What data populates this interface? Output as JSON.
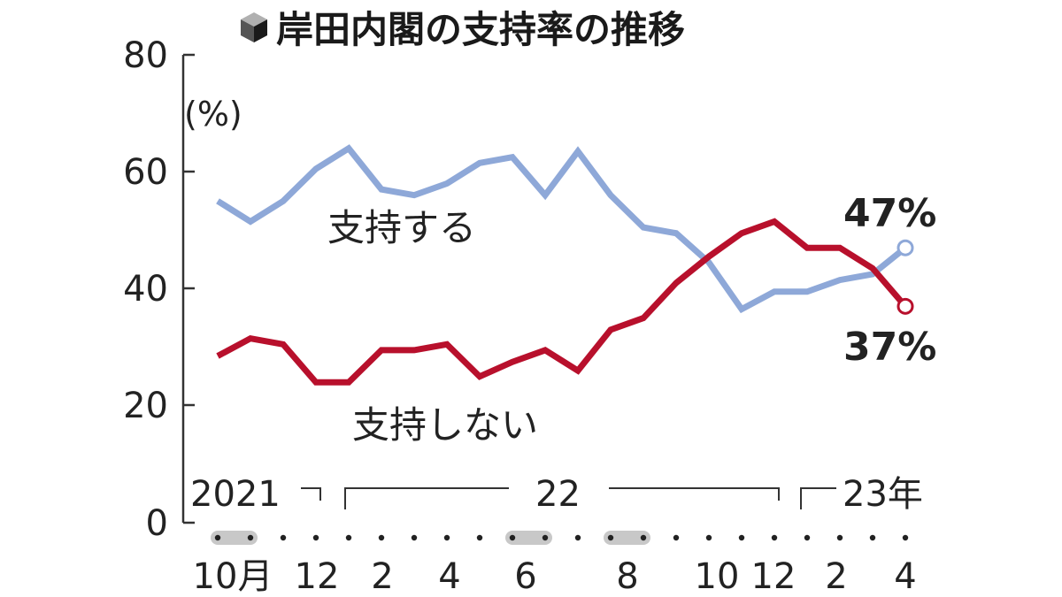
{
  "chart_data": {
    "type": "line",
    "title": "岸田内閣の支持率の推移",
    "unit_label": "(%)",
    "y_ticks": [
      "80",
      "60",
      "40",
      "20",
      "0"
    ],
    "ylim": [
      0,
      80
    ],
    "grid": false,
    "year_labels": [
      "2021",
      "22",
      "23年"
    ],
    "month_labels": [
      "10月",
      "12",
      "2",
      "4",
      "6",
      "8",
      "10",
      "12",
      "2",
      "4"
    ],
    "x": [
      "2021-10a",
      "2021-10b",
      "2021-11",
      "2021-12",
      "2022-01",
      "2022-02",
      "2022-03",
      "2022-04",
      "2022-05",
      "2022-06a",
      "2022-06b",
      "2022-07",
      "2022-08a",
      "2022-08b",
      "2022-09",
      "2022-10",
      "2022-11",
      "2022-12",
      "2023-01",
      "2023-02",
      "2023-03",
      "2023-04"
    ],
    "shaded_months": [
      "10月",
      "6",
      "8"
    ],
    "series": [
      {
        "name": "支持する",
        "color": "#8ea8d8",
        "values": [
          55,
          51.5,
          55,
          60.5,
          64,
          57,
          56,
          58,
          61.5,
          62.5,
          56,
          63.5,
          56,
          50.5,
          49.5,
          44.5,
          36.5,
          39.5,
          39.5,
          41.5,
          42.5,
          47
        ]
      },
      {
        "name": "支持しない",
        "color": "#b8102c",
        "values": [
          28.5,
          31.5,
          30.5,
          24,
          24,
          29.5,
          29.5,
          30.5,
          25,
          27.5,
          29.5,
          26,
          33,
          35,
          41,
          45.5,
          49.5,
          51.5,
          47,
          47,
          43.5,
          37
        ]
      }
    ],
    "end_labels": [
      "47%",
      "37%"
    ]
  }
}
